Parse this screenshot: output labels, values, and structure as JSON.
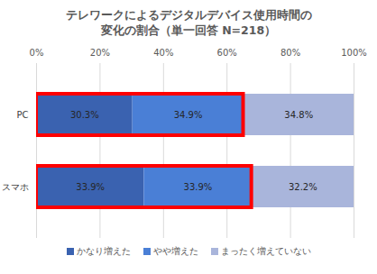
{
  "chart_data": {
    "type": "bar",
    "title": "テレワークによるデジタルデバイス使用時間の\n変化の割合（単一回答 N=218）",
    "orientation": "horizontal",
    "stacked": true,
    "data_labels": true,
    "grid": true,
    "legend": "bottom",
    "categories": [
      "PC",
      "スマホ"
    ],
    "series": [
      {
        "name": "かなり増えた",
        "color": "#3a62b0",
        "values": [
          30.3,
          33.9
        ],
        "value_labels": [
          "30.3%",
          "33.9%"
        ]
      },
      {
        "name": "やや増えた",
        "color": "#4a7fd6",
        "values": [
          34.9,
          33.9
        ],
        "value_labels": [
          "34.9%",
          "33.9%"
        ]
      },
      {
        "name": "まったく増えていない",
        "color": "#a9b5db",
        "values": [
          34.8,
          32.2
        ],
        "value_labels": [
          "34.8%",
          "32.2%"
        ]
      }
    ],
    "xlim": [
      0,
      100
    ],
    "xticks": [
      {
        "value": 0,
        "label": "0%"
      },
      {
        "value": 20,
        "label": "20%"
      },
      {
        "value": 40,
        "label": "40%"
      },
      {
        "value": 60,
        "label": "60%"
      },
      {
        "value": 80,
        "label": "80%"
      },
      {
        "value": 100,
        "label": "100%"
      }
    ]
  }
}
